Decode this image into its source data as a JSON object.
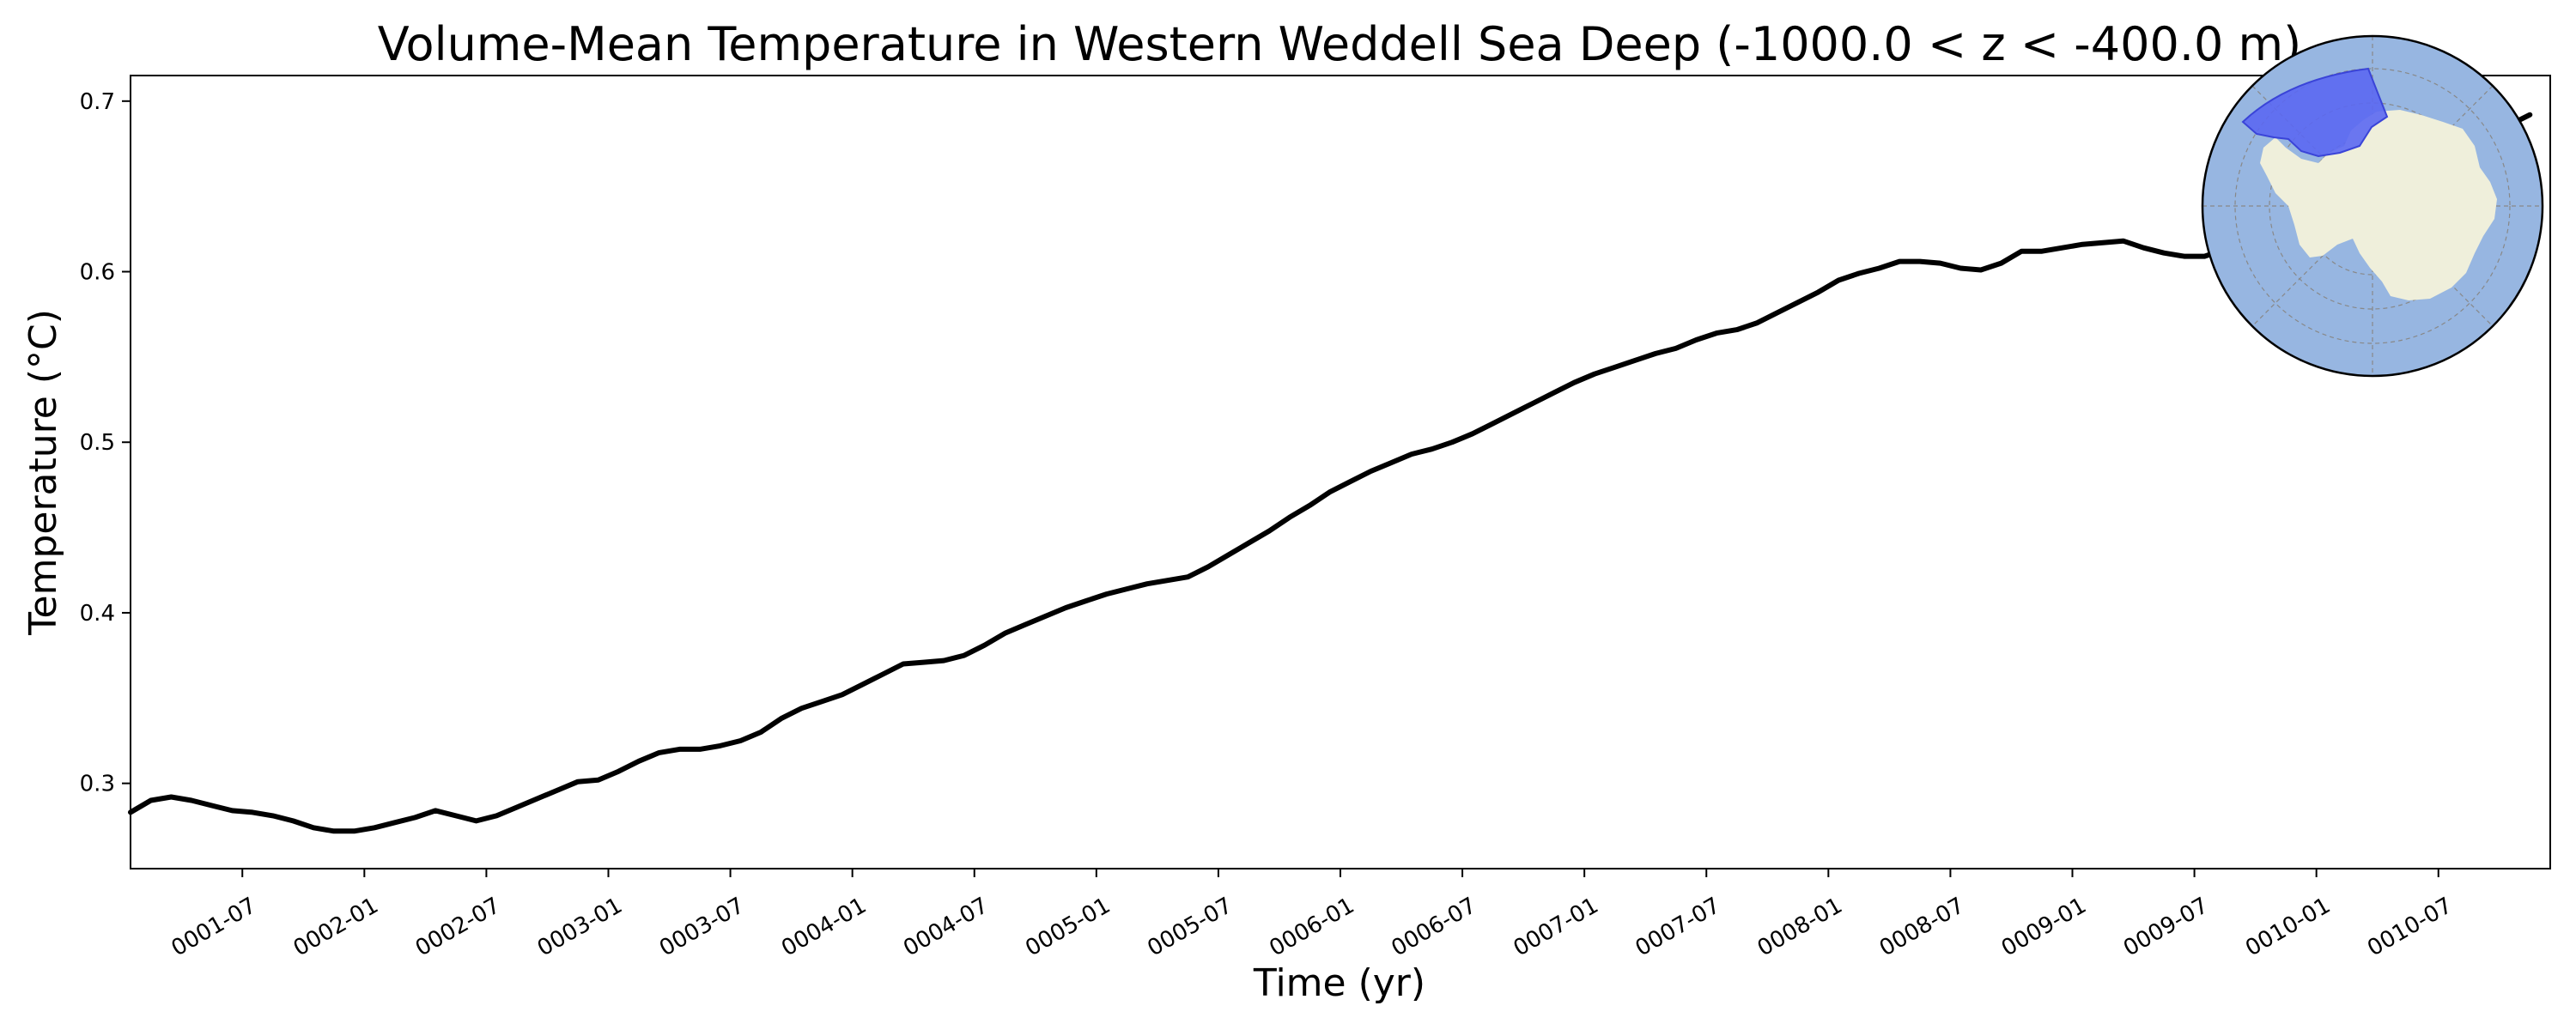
{
  "chart_data": {
    "type": "line",
    "title": "Volume-Mean Temperature in Western Weddell Sea Deep (-1000.0 < z < -400.0 m)",
    "xlabel": "Time (yr)",
    "ylabel": "Temperature (°C)",
    "xlim": [
      "0001-01-16",
      "0010-12-16"
    ],
    "ylim": [
      0.25,
      0.715
    ],
    "xticks": [
      "0001-07",
      "0002-01",
      "0002-07",
      "0003-01",
      "0003-07",
      "0004-01",
      "0004-07",
      "0005-01",
      "0005-07",
      "0006-01",
      "0006-07",
      "0007-01",
      "0007-07",
      "0008-01",
      "0008-07",
      "0009-01",
      "0009-07",
      "0010-01",
      "0010-07"
    ],
    "yticks": [
      "0.3",
      "0.4",
      "0.5",
      "0.6",
      "0.7"
    ],
    "grid": false,
    "legend": "none",
    "line_color": "#000000",
    "series": [
      {
        "x_start": "0001-01",
        "x_step": "1 month",
        "values": [
          0.283,
          0.29,
          0.292,
          0.29,
          0.287,
          0.284,
          0.283,
          0.281,
          0.278,
          0.274,
          0.272,
          0.272,
          0.274,
          0.277,
          0.28,
          0.284,
          0.281,
          0.278,
          0.281,
          0.286,
          0.291,
          0.296,
          0.301,
          0.302,
          0.307,
          0.313,
          0.318,
          0.32,
          0.32,
          0.322,
          0.325,
          0.33,
          0.338,
          0.344,
          0.348,
          0.352,
          0.358,
          0.364,
          0.37,
          0.371,
          0.372,
          0.375,
          0.381,
          0.388,
          0.393,
          0.398,
          0.403,
          0.407,
          0.411,
          0.414,
          0.417,
          0.419,
          0.421,
          0.427,
          0.434,
          0.441,
          0.448,
          0.456,
          0.463,
          0.471,
          0.477,
          0.483,
          0.488,
          0.493,
          0.496,
          0.5,
          0.505,
          0.511,
          0.517,
          0.523,
          0.529,
          0.535,
          0.54,
          0.544,
          0.548,
          0.552,
          0.555,
          0.56,
          0.564,
          0.566,
          0.57,
          0.576,
          0.582,
          0.588,
          0.595,
          0.599,
          0.602,
          0.606,
          0.606,
          0.605,
          0.602,
          0.601,
          0.605,
          0.612,
          0.612,
          0.614,
          0.616,
          0.617,
          0.618,
          0.614,
          0.611,
          0.609,
          0.609,
          0.613,
          0.618,
          0.622,
          0.626,
          0.63,
          0.635,
          0.64,
          0.646,
          0.652,
          0.658,
          0.664,
          0.67,
          0.675,
          0.68,
          0.686,
          0.692
        ]
      }
    ]
  },
  "inset_map": {
    "ocean_color": "#97b6e1",
    "land_color": "#efefdb",
    "region_color": "#5b68f2"
  }
}
